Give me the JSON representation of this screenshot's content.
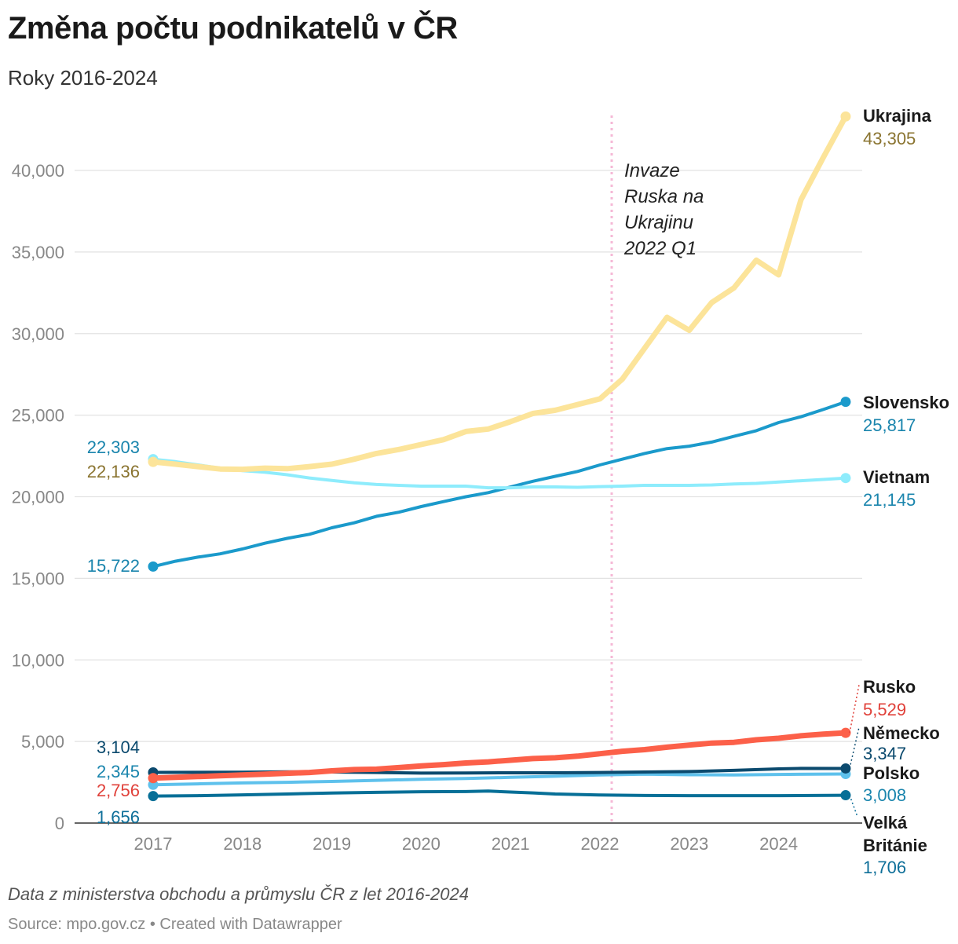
{
  "header": {
    "title": "Změna počtu podnikatelů v ČR",
    "subtitle": "Roky 2016-2024"
  },
  "footer": {
    "note": "Data z ministerstva obchodu a průmyslu ČR z let 2016-2024",
    "source": "Source: mpo.gov.cz • Created with Datawrapper"
  },
  "chart_data": {
    "type": "line",
    "title": "Změna počtu podnikatelů v ČR",
    "subtitle": "Roky 2016-2024",
    "xlabel": "",
    "ylabel": "",
    "xlim": [
      2016.4,
      2024.9
    ],
    "ylim": [
      0,
      44000
    ],
    "x_ticks": [
      2017,
      2018,
      2019,
      2020,
      2021,
      2022,
      2023,
      2024
    ],
    "y_ticks": [
      0,
      5000,
      10000,
      15000,
      20000,
      25000,
      30000,
      35000,
      40000
    ],
    "grid": "horizontal",
    "legend": "direct labels at line ends",
    "annotation": {
      "x": 2022.0,
      "text": [
        "Invaze",
        "Ruska na",
        "Ukrajinu",
        "2022 Q1"
      ]
    },
    "series": [
      {
        "name": "Ukrajina",
        "color": "#fce49a",
        "end_value_label": "43,305",
        "start_value_label": "22,136",
        "value_color": "#8a7430",
        "width": 7,
        "points": [
          [
            2017.0,
            22136
          ],
          [
            2017.25,
            22000
          ],
          [
            2017.5,
            21850
          ],
          [
            2017.75,
            21700
          ],
          [
            2018.0,
            21680
          ],
          [
            2018.25,
            21750
          ],
          [
            2018.5,
            21720
          ],
          [
            2018.75,
            21850
          ],
          [
            2019.0,
            22000
          ],
          [
            2019.25,
            22300
          ],
          [
            2019.5,
            22650
          ],
          [
            2019.75,
            22900
          ],
          [
            2020.0,
            23200
          ],
          [
            2020.25,
            23500
          ],
          [
            2020.5,
            24000
          ],
          [
            2020.75,
            24150
          ],
          [
            2021.0,
            24600
          ],
          [
            2021.25,
            25100
          ],
          [
            2021.5,
            25300
          ],
          [
            2021.75,
            25650
          ],
          [
            2022.0,
            26000
          ],
          [
            2022.25,
            27200
          ],
          [
            2022.5,
            29100
          ],
          [
            2022.75,
            31000
          ],
          [
            2023.0,
            30200
          ],
          [
            2023.25,
            31900
          ],
          [
            2023.5,
            32800
          ],
          [
            2023.75,
            34500
          ],
          [
            2024.0,
            33600
          ],
          [
            2024.25,
            38200
          ],
          [
            2024.5,
            40800
          ],
          [
            2024.75,
            43305
          ]
        ]
      },
      {
        "name": "Slovensko",
        "color": "#1b9acb",
        "end_value_label": "25,817",
        "start_value_label": "15,722",
        "value_color": "#1a85ad",
        "width": 4,
        "points": [
          [
            2017.0,
            15722
          ],
          [
            2017.25,
            16050
          ],
          [
            2017.5,
            16300
          ],
          [
            2017.75,
            16500
          ],
          [
            2018.0,
            16800
          ],
          [
            2018.25,
            17150
          ],
          [
            2018.5,
            17450
          ],
          [
            2018.75,
            17700
          ],
          [
            2019.0,
            18100
          ],
          [
            2019.25,
            18400
          ],
          [
            2019.5,
            18800
          ],
          [
            2019.75,
            19050
          ],
          [
            2020.0,
            19400
          ],
          [
            2020.25,
            19700
          ],
          [
            2020.5,
            20000
          ],
          [
            2020.75,
            20250
          ],
          [
            2021.0,
            20600
          ],
          [
            2021.25,
            20950
          ],
          [
            2021.5,
            21250
          ],
          [
            2021.75,
            21550
          ],
          [
            2022.0,
            21950
          ],
          [
            2022.25,
            22300
          ],
          [
            2022.5,
            22650
          ],
          [
            2022.75,
            22950
          ],
          [
            2023.0,
            23100
          ],
          [
            2023.25,
            23350
          ],
          [
            2023.5,
            23700
          ],
          [
            2023.75,
            24050
          ],
          [
            2024.0,
            24550
          ],
          [
            2024.25,
            24900
          ],
          [
            2024.5,
            25350
          ],
          [
            2024.75,
            25817
          ]
        ]
      },
      {
        "name": "Vietnam",
        "color": "#8eecfc",
        "end_value_label": "21,145",
        "start_value_label": "22,303",
        "value_color": "#1a85ad",
        "width": 4,
        "points": [
          [
            2017.0,
            22303
          ],
          [
            2017.25,
            22150
          ],
          [
            2017.5,
            21950
          ],
          [
            2017.75,
            21750
          ],
          [
            2018.0,
            21600
          ],
          [
            2018.25,
            21500
          ],
          [
            2018.5,
            21350
          ],
          [
            2018.75,
            21150
          ],
          [
            2019.0,
            21000
          ],
          [
            2019.25,
            20850
          ],
          [
            2019.5,
            20750
          ],
          [
            2019.75,
            20700
          ],
          [
            2020.0,
            20650
          ],
          [
            2020.25,
            20650
          ],
          [
            2020.5,
            20650
          ],
          [
            2020.75,
            20550
          ],
          [
            2021.0,
            20550
          ],
          [
            2021.25,
            20600
          ],
          [
            2021.5,
            20600
          ],
          [
            2021.75,
            20580
          ],
          [
            2022.0,
            20620
          ],
          [
            2022.25,
            20650
          ],
          [
            2022.5,
            20700
          ],
          [
            2022.75,
            20700
          ],
          [
            2023.0,
            20700
          ],
          [
            2023.25,
            20720
          ],
          [
            2023.5,
            20780
          ],
          [
            2023.75,
            20820
          ],
          [
            2024.0,
            20900
          ],
          [
            2024.25,
            20980
          ],
          [
            2024.5,
            21060
          ],
          [
            2024.75,
            21145
          ]
        ]
      },
      {
        "name": "Rusko",
        "color": "#fc6049",
        "end_value_label": "5,529",
        "start_value_label": "2,756",
        "value_color": "#e0413a",
        "width": 7,
        "points": [
          [
            2017.0,
            2756
          ],
          [
            2017.25,
            2800
          ],
          [
            2017.5,
            2850
          ],
          [
            2017.75,
            2900
          ],
          [
            2018.0,
            2950
          ],
          [
            2018.25,
            3000
          ],
          [
            2018.5,
            3050
          ],
          [
            2018.75,
            3100
          ],
          [
            2019.0,
            3200
          ],
          [
            2019.25,
            3280
          ],
          [
            2019.5,
            3300
          ],
          [
            2019.75,
            3400
          ],
          [
            2020.0,
            3500
          ],
          [
            2020.25,
            3580
          ],
          [
            2020.5,
            3680
          ],
          [
            2020.75,
            3750
          ],
          [
            2021.0,
            3850
          ],
          [
            2021.25,
            3950
          ],
          [
            2021.5,
            4000
          ],
          [
            2021.75,
            4100
          ],
          [
            2022.0,
            4250
          ],
          [
            2022.25,
            4400
          ],
          [
            2022.5,
            4500
          ],
          [
            2022.75,
            4650
          ],
          [
            2023.0,
            4780
          ],
          [
            2023.25,
            4900
          ],
          [
            2023.5,
            4950
          ],
          [
            2023.75,
            5100
          ],
          [
            2024.0,
            5200
          ],
          [
            2024.25,
            5350
          ],
          [
            2024.5,
            5450
          ],
          [
            2024.75,
            5529
          ]
        ]
      },
      {
        "name": "Německo",
        "color": "#0b4a6e",
        "end_value_label": "3,347",
        "start_value_label": "3,104",
        "value_color": "#0b4a6e",
        "width": 4,
        "points": [
          [
            2017.0,
            3104
          ],
          [
            2017.5,
            3110
          ],
          [
            2018.0,
            3120
          ],
          [
            2018.5,
            3140
          ],
          [
            2019.0,
            3130
          ],
          [
            2019.5,
            3100
          ],
          [
            2020.0,
            3060
          ],
          [
            2020.5,
            3070
          ],
          [
            2021.0,
            3080
          ],
          [
            2021.5,
            3080
          ],
          [
            2022.0,
            3100
          ],
          [
            2022.5,
            3130
          ],
          [
            2023.0,
            3160
          ],
          [
            2023.5,
            3230
          ],
          [
            2024.0,
            3320
          ],
          [
            2024.25,
            3350
          ],
          [
            2024.75,
            3347
          ]
        ]
      },
      {
        "name": "Polsko",
        "color": "#5ec1ec",
        "end_value_label": "3,008",
        "start_value_label": "2,345",
        "value_color": "#1a85ad",
        "width": 4,
        "points": [
          [
            2017.0,
            2345
          ],
          [
            2017.5,
            2400
          ],
          [
            2018.0,
            2460
          ],
          [
            2018.5,
            2500
          ],
          [
            2019.0,
            2550
          ],
          [
            2019.5,
            2620
          ],
          [
            2020.0,
            2680
          ],
          [
            2020.5,
            2730
          ],
          [
            2021.0,
            2800
          ],
          [
            2021.5,
            2870
          ],
          [
            2022.0,
            2950
          ],
          [
            2022.5,
            3000
          ],
          [
            2023.0,
            2960
          ],
          [
            2023.5,
            2950
          ],
          [
            2024.0,
            2980
          ],
          [
            2024.75,
            3008
          ]
        ]
      },
      {
        "name": "Velká Británie",
        "color": "#076f97",
        "end_value_label": "1,706",
        "start_value_label": "1,656",
        "value_color": "#0e6f99",
        "width": 4,
        "points": [
          [
            2017.0,
            1656
          ],
          [
            2017.5,
            1680
          ],
          [
            2018.0,
            1730
          ],
          [
            2018.5,
            1780
          ],
          [
            2019.0,
            1840
          ],
          [
            2019.5,
            1880
          ],
          [
            2020.0,
            1920
          ],
          [
            2020.5,
            1930
          ],
          [
            2020.75,
            1960
          ],
          [
            2021.0,
            1900
          ],
          [
            2021.25,
            1850
          ],
          [
            2021.5,
            1780
          ],
          [
            2022.0,
            1720
          ],
          [
            2022.5,
            1690
          ],
          [
            2023.0,
            1680
          ],
          [
            2023.5,
            1680
          ],
          [
            2024.0,
            1680
          ],
          [
            2024.75,
            1706
          ]
        ]
      }
    ]
  }
}
